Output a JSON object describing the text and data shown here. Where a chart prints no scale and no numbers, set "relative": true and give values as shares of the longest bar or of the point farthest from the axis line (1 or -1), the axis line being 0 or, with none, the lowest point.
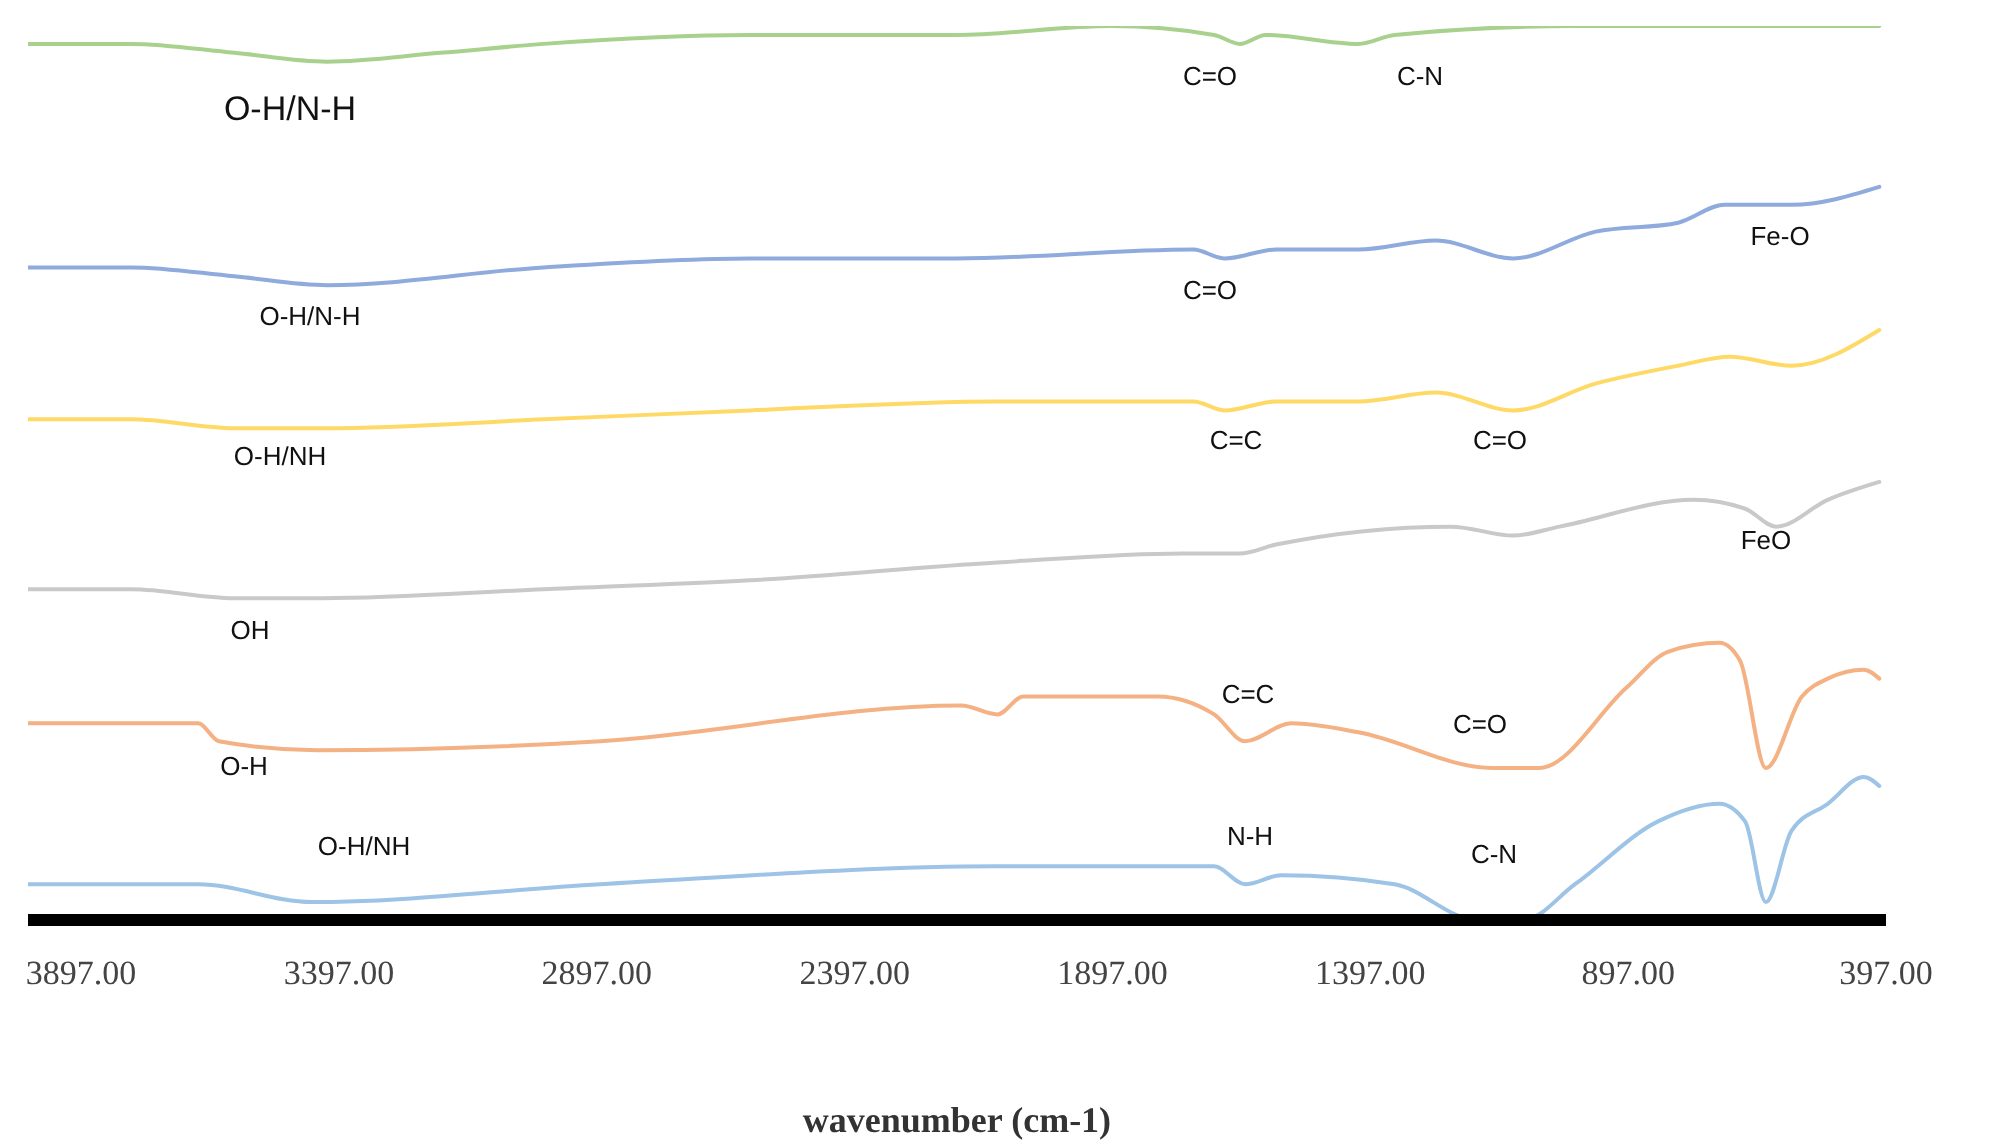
{
  "chart_data": {
    "type": "line",
    "relative": true,
    "xlabel": "wavenumber (cm-1)",
    "xlim": [
      4000,
      397
    ],
    "xticks": [
      {
        "value": 3897,
        "label": "3897.00"
      },
      {
        "value": 3397,
        "label": "3397.00"
      },
      {
        "value": 2897,
        "label": "2897.00"
      },
      {
        "value": 2397,
        "label": "2397.00"
      },
      {
        "value": 1897,
        "label": "1897.00"
      },
      {
        "value": 1397,
        "label": "1397.00"
      },
      {
        "value": 897,
        "label": "897.00"
      },
      {
        "value": 397,
        "label": "397.00"
      }
    ],
    "series": [
      {
        "color": "#a9d18e",
        "x": [
          4000,
          3800,
          3600,
          3420,
          3200,
          3000,
          2600,
          2200,
          1900,
          1700,
          1650,
          1600,
          1420,
          1350,
          1000,
          410
        ],
        "values": [
          0.98,
          0.98,
          0.97,
          0.96,
          0.97,
          0.98,
          0.99,
          0.99,
          1.0,
          0.99,
          0.98,
          0.99,
          0.98,
          0.99,
          1.0,
          1.0
        ]
      },
      {
        "color": "#8faadc",
        "x": [
          4000,
          3800,
          3600,
          3420,
          3000,
          2600,
          2200,
          1740,
          1680,
          1580,
          1420,
          1270,
          1120,
          960,
          800,
          710,
          580,
          410
        ],
        "values": [
          0.73,
          0.73,
          0.72,
          0.71,
          0.73,
          0.74,
          0.74,
          0.75,
          0.74,
          0.75,
          0.75,
          0.76,
          0.74,
          0.77,
          0.78,
          0.8,
          0.8,
          0.82
        ]
      },
      {
        "color": "#ffd966",
        "x": [
          4000,
          3800,
          3600,
          3420,
          3000,
          2600,
          2120,
          1740,
          1680,
          1580,
          1420,
          1270,
          1120,
          960,
          800,
          700,
          580,
          410
        ],
        "values": [
          0.56,
          0.56,
          0.55,
          0.55,
          0.56,
          0.57,
          0.58,
          0.58,
          0.57,
          0.58,
          0.58,
          0.59,
          0.57,
          0.6,
          0.62,
          0.63,
          0.62,
          0.66
        ]
      },
      {
        "color": "#c9c9c9",
        "x": [
          4000,
          3800,
          3600,
          3430,
          3000,
          2600,
          2120,
          1760,
          1650,
          1580,
          1240,
          1120,
          1030,
          770,
          670,
          610,
          510,
          410
        ],
        "values": [
          0.37,
          0.37,
          0.36,
          0.36,
          0.37,
          0.38,
          0.4,
          0.41,
          0.41,
          0.42,
          0.44,
          0.43,
          0.44,
          0.47,
          0.46,
          0.44,
          0.47,
          0.49
        ]
      },
      {
        "color": "#f4b183",
        "x": [
          4000,
          3800,
          3670,
          3630,
          3440,
          2890,
          2190,
          2120,
          2070,
          1810,
          1700,
          1640,
          1550,
          1420,
          1160,
          1070,
          900,
          820,
          720,
          680,
          630,
          560,
          510,
          440,
          410
        ],
        "values": [
          0.22,
          0.22,
          0.22,
          0.2,
          0.19,
          0.2,
          0.24,
          0.23,
          0.25,
          0.25,
          0.23,
          0.2,
          0.22,
          0.21,
          0.17,
          0.17,
          0.26,
          0.3,
          0.31,
          0.29,
          0.17,
          0.25,
          0.27,
          0.28,
          0.27
        ]
      },
      {
        "color": "#9dc3e6",
        "x": [
          4000,
          3670,
          3450,
          2890,
          2120,
          2070,
          1700,
          1640,
          1570,
          1350,
          1190,
          1100,
          1000,
          840,
          720,
          670,
          630,
          580,
          510,
          440,
          410
        ],
        "values": [
          0.04,
          0.04,
          0.02,
          0.04,
          0.06,
          0.06,
          0.06,
          0.04,
          0.05,
          0.04,
          0.0,
          0.0,
          0.04,
          0.11,
          0.13,
          0.11,
          0.02,
          0.1,
          0.13,
          0.16,
          0.15
        ]
      }
    ],
    "annotations": [
      "O-H/N-H",
      "C=O",
      "C-N",
      "O-H/N-H",
      "C=O",
      "Fe-O",
      "O-H/NH",
      "C=C",
      "C=O",
      "OH",
      "FeO",
      "O-H",
      "C=C",
      "C=O",
      "O-H/NH",
      "N-H",
      "C-N"
    ]
  }
}
